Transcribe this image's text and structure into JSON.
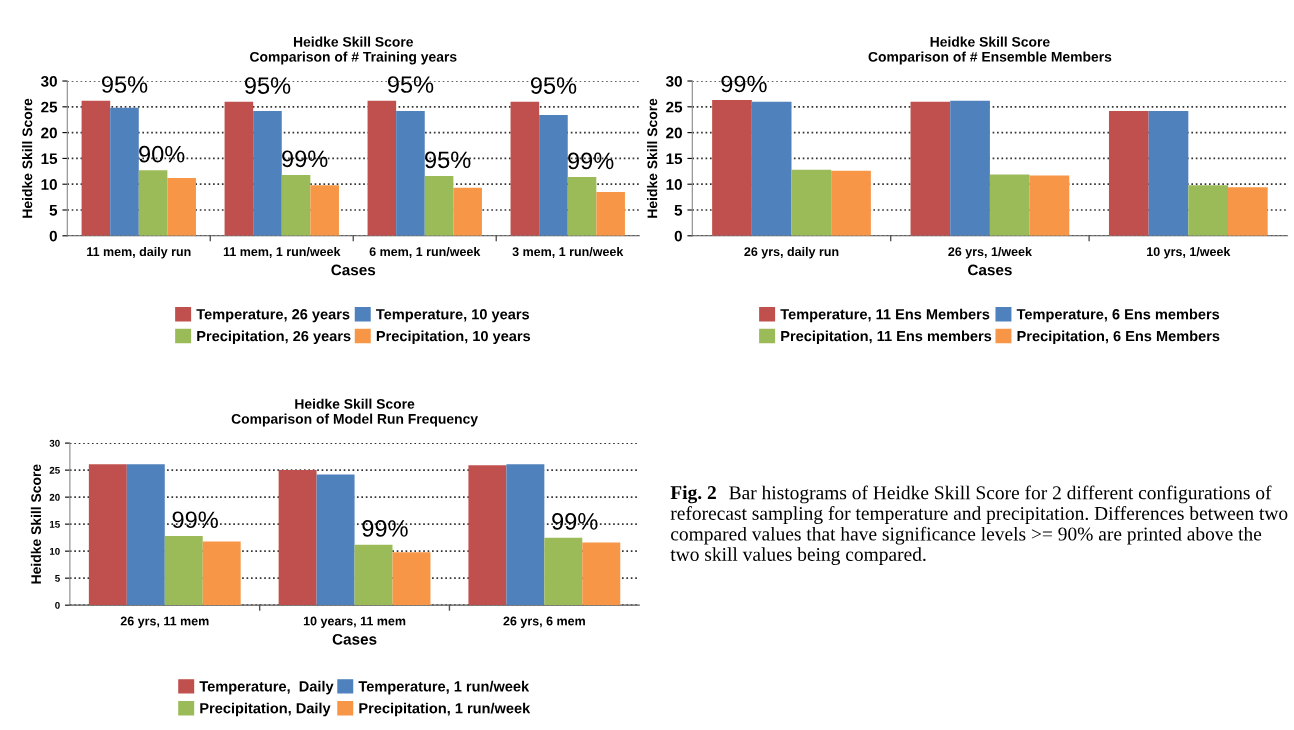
{
  "chart_data": [
    {
      "type": "bar",
      "title": "Heidke Skill Score",
      "subtitle": "Comparison of # Training years",
      "xlabel": "Cases",
      "ylabel": "Heidke Skill Score",
      "categories": [
        "11 mem, daily run",
        "11 mem, 1 run/week",
        "6 mem, 1 run/week",
        "3 mem, 1 run/week"
      ],
      "series": [
        {
          "name": "Temperature, 26 years",
          "color": "#c0504d",
          "values": [
            26.2,
            26.0,
            26.2,
            26.0
          ]
        },
        {
          "name": "Temperature, 10 years",
          "color": "#4f81bd",
          "values": [
            24.8,
            24.2,
            24.2,
            23.4
          ]
        },
        {
          "name": "Precipitation, 26 years",
          "color": "#9bbb59",
          "values": [
            12.7,
            11.8,
            11.6,
            11.4
          ]
        },
        {
          "name": "Precipitation, 10 years",
          "color": "#f79646",
          "values": [
            11.2,
            9.8,
            9.3,
            8.5
          ]
        }
      ],
      "ylim": [
        0,
        30
      ],
      "yticks": [
        0,
        5,
        10,
        15,
        20,
        25,
        30
      ],
      "grid": "y",
      "legend": "bottom",
      "annotations": [
        "95%",
        {
          "text": "90%",
          "x": "11 mem, daily run",
          "y": 12.7
        },
        "95%",
        {
          "text": "99%",
          "x": "11 mem, 1 run/week",
          "y": 11.8
        },
        "95%",
        {
          "text": "95%",
          "x": "6 mem, 1 run/week",
          "y": 11.6
        },
        "95%",
        {
          "text": "99%",
          "x": "3 mem, 1 run/week",
          "y": 11.4
        }
      ]
    },
    {
      "type": "bar",
      "title": "Heidke Skill Score",
      "subtitle": "Comparison of # Ensemble Members",
      "xlabel": "Cases",
      "ylabel": "Heidke Skill Score",
      "categories": [
        "26 yrs, daily run",
        "26 yrs, 1/week",
        "10 yrs, 1/week"
      ],
      "series": [
        {
          "name": "Temperature, 11 Ens Members",
          "color": "#c0504d",
          "values": [
            26.3,
            26.0,
            24.2
          ]
        },
        {
          "name": "Temperature, 6 Ens members",
          "color": "#4f81bd",
          "values": [
            26.0,
            26.2,
            24.2
          ]
        },
        {
          "name": "Precipitation, 11 Ens members",
          "color": "#9bbb59",
          "values": [
            12.8,
            11.9,
            9.8
          ]
        },
        {
          "name": "Precipitation, 6 Ens Members",
          "color": "#f79646",
          "values": [
            12.6,
            11.7,
            9.4
          ]
        }
      ],
      "ylim": [
        0,
        30
      ],
      "yticks": [
        0,
        5,
        10,
        15,
        20,
        25,
        30
      ],
      "grid": "y",
      "legend": "bottom",
      "annotations": [
        {
          "text": "99%",
          "x": "26 yrs, daily run",
          "y": 26.3
        }
      ]
    },
    {
      "type": "bar",
      "title": "Heidke Skill Score",
      "subtitle": "Comparison of Model Run Frequency",
      "xlabel": "Cases",
      "ylabel": "Heidke Skill Score",
      "categories": [
        "26 yrs, 11 mem",
        "10 years, 11 mem",
        "26 yrs, 6 mem"
      ],
      "series": [
        {
          "name": "Temperature,  Daily",
          "color": "#c0504d",
          "values": [
            26.1,
            25.0,
            25.9
          ]
        },
        {
          "name": "Temperature, 1 run/week",
          "color": "#4f81bd",
          "values": [
            26.1,
            24.2,
            26.1
          ]
        },
        {
          "name": "Precipitation, Daily",
          "color": "#9bbb59",
          "values": [
            12.8,
            11.2,
            12.5
          ]
        },
        {
          "name": "Precipitation, 1 run/week",
          "color": "#f79646",
          "values": [
            11.8,
            9.8,
            11.6
          ]
        }
      ],
      "ylim": [
        0,
        30
      ],
      "yticks": [
        0,
        5,
        10,
        15,
        20,
        25,
        30
      ],
      "grid": "y",
      "legend": "bottom",
      "annotations": [
        {
          "text": "99%",
          "x": "26 yrs, 11 mem",
          "y": 12.8
        },
        {
          "text": "99%",
          "x": "10 years, 11 mem",
          "y": 11.2
        },
        {
          "text": "99%",
          "x": "26 yrs, 6 mem",
          "y": 12.5
        }
      ]
    },
    {
      "type": "other",
      "annotations": [
        "Fig. 2",
        "Bar histograms of Heidke Skill Score for 2 different configurations of reforecast sampling for temperature and precipitation. Differences between two compared values that have significance levels >= 90% are printed above the two skill values being compared."
      ]
    }
  ]
}
